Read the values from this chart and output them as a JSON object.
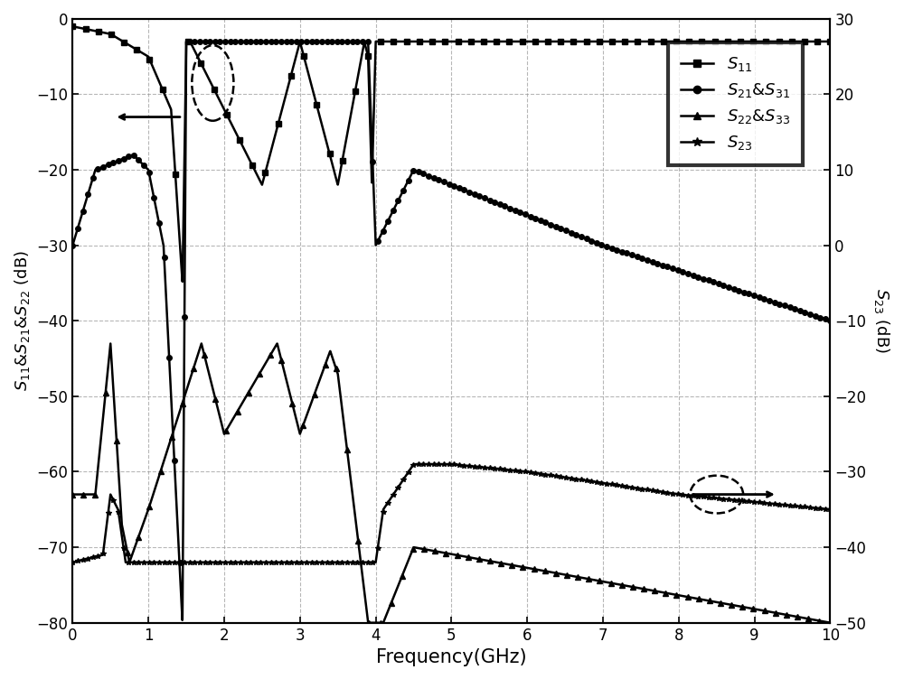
{
  "xlabel": "Frequency(GHz)",
  "ylabel_left": "$S_{11}$&$S_{21}$&$S_{22}$ (dB)",
  "ylabel_right": "$S_{23}$ (dB)",
  "xlim": [
    0,
    10
  ],
  "ylim_left": [
    -80,
    0
  ],
  "ylim_right": [
    -50,
    30
  ],
  "xticks": [
    0,
    1,
    2,
    3,
    4,
    5,
    6,
    7,
    8,
    9,
    10
  ],
  "yticks_left": [
    -80,
    -70,
    -60,
    -50,
    -40,
    -30,
    -20,
    -10,
    0
  ],
  "yticks_right": [
    -50,
    -40,
    -30,
    -20,
    -10,
    0,
    10,
    20,
    30
  ],
  "grid_color": "#999999",
  "background": "#ffffff"
}
